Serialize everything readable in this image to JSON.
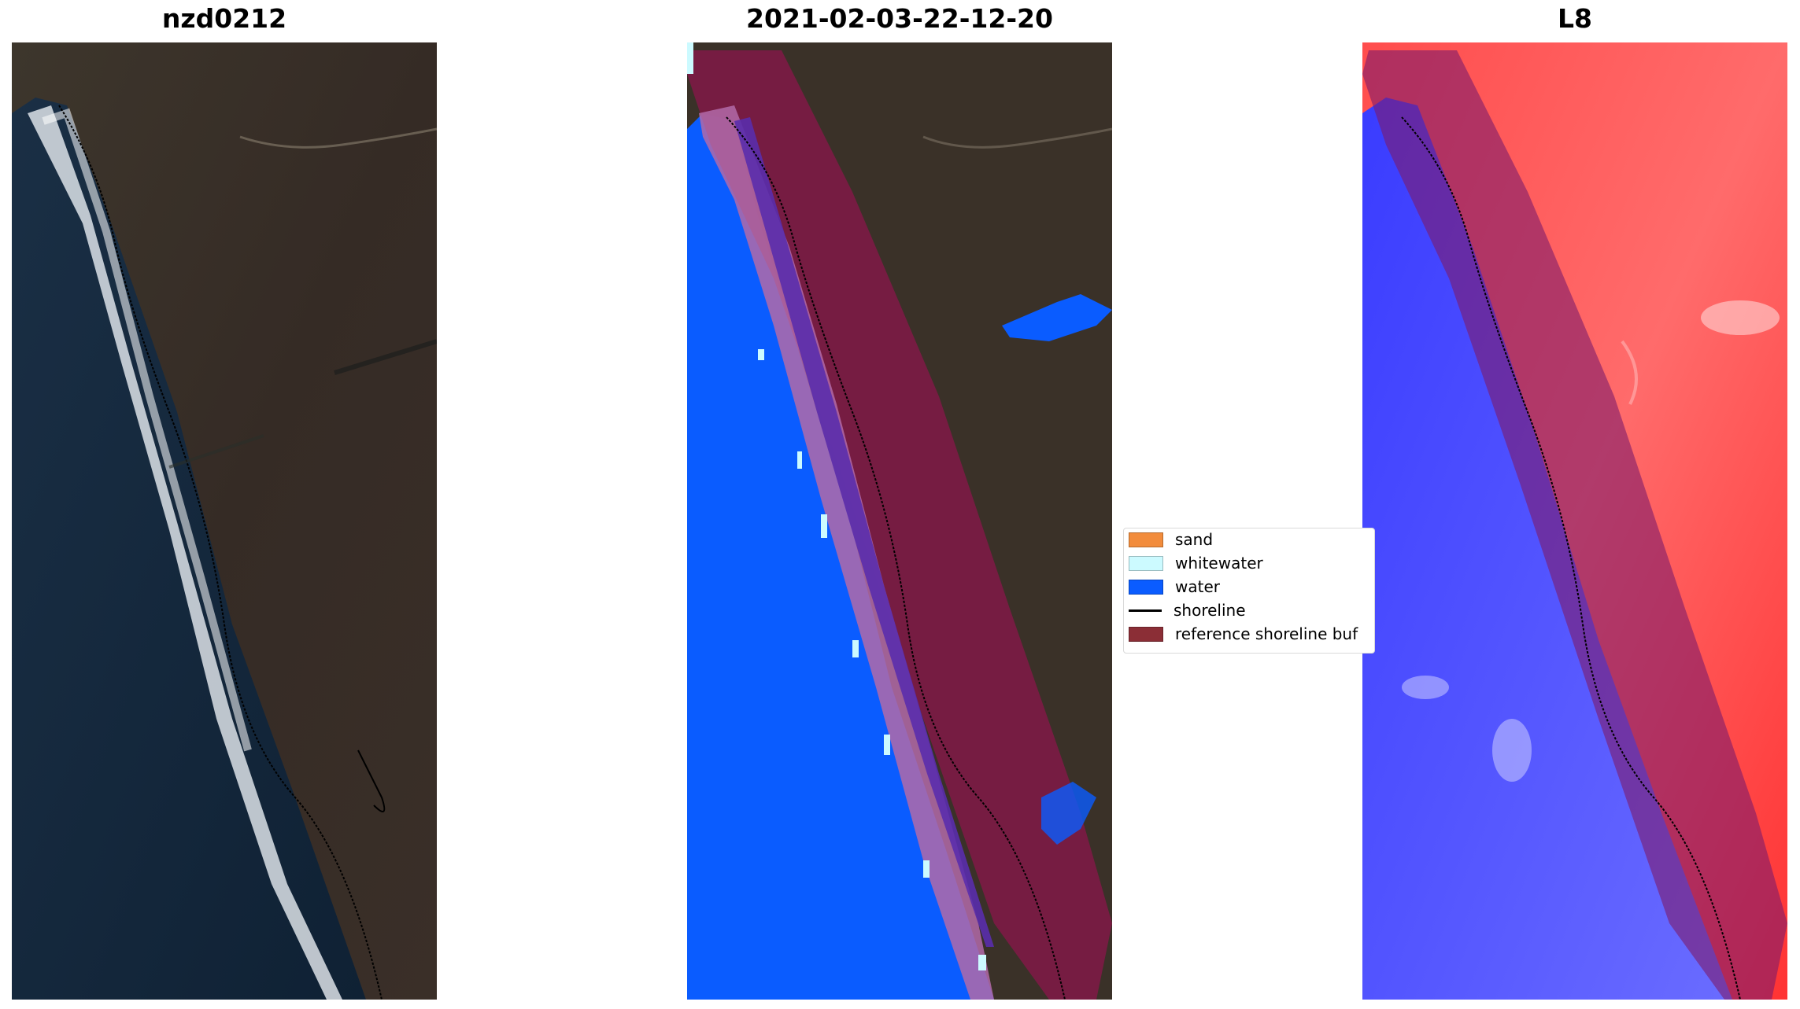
{
  "panels": [
    {
      "title": "nzd0212"
    },
    {
      "title": "2021-02-03-22-12-20"
    },
    {
      "title": "L8"
    }
  ],
  "legend": {
    "items": [
      {
        "label": "sand",
        "color": "#f28c3c",
        "kind": "patch"
      },
      {
        "label": "whitewater",
        "color": "#ccfaff",
        "kind": "patch"
      },
      {
        "label": "water",
        "color": "#0a5cff",
        "kind": "patch"
      },
      {
        "label": "shoreline",
        "color": "#000000",
        "kind": "line"
      },
      {
        "label": "reference shoreline buf",
        "color": "#8b2e36",
        "kind": "patch"
      }
    ]
  },
  "colors": {
    "land": "#3a3128",
    "sea_dark": "#13263a",
    "surf": "#e8eef2",
    "classified_water": "#0a5cff",
    "buffer": "#7d1b45",
    "sand_zone": "#b36aa8",
    "index_red": "#ff3b3b",
    "index_blue": "#2a2bff"
  }
}
